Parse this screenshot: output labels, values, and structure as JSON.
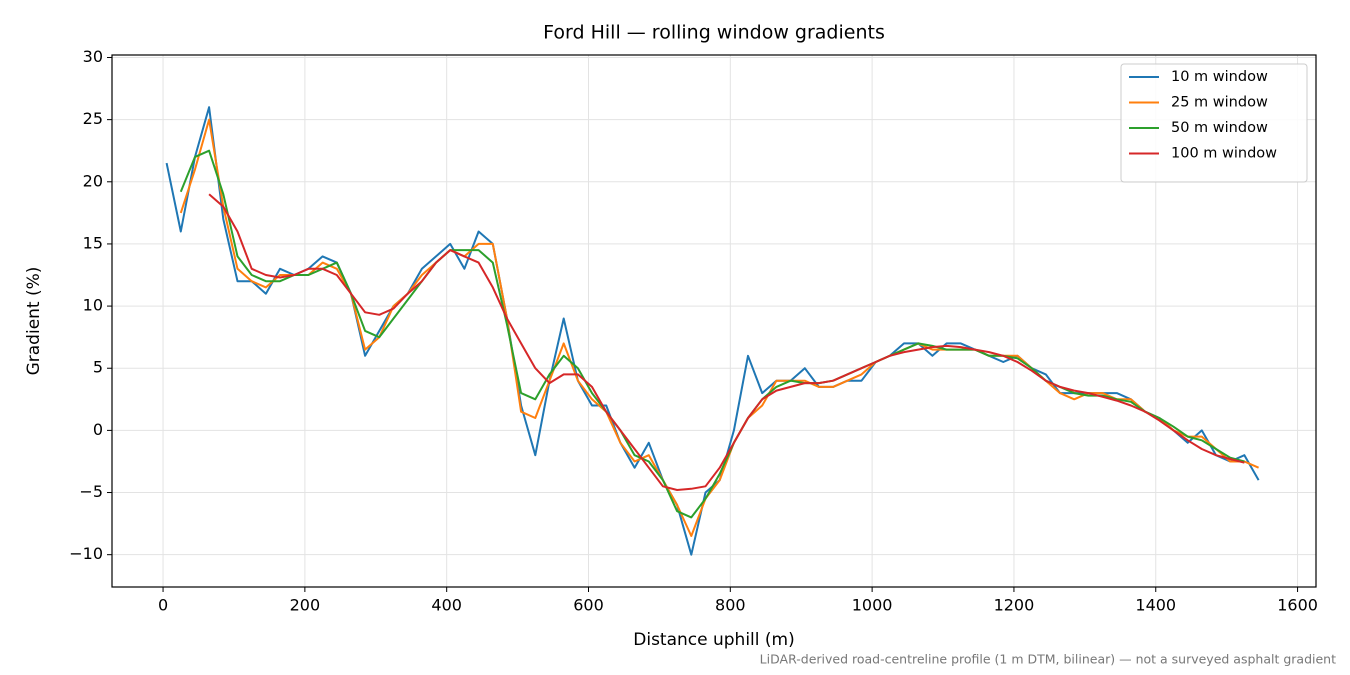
{
  "chart_data": {
    "type": "line",
    "title": "Ford Hill — rolling window gradients",
    "x_label": "Distance uphill (m)",
    "y_label": "Gradient (%)",
    "footnote": "LiDAR-derived road-centreline profile (1 m DTM, bilinear) — not a surveyed asphalt gradient",
    "grid": true,
    "legend": "upper right",
    "xlim": [
      -72,
      1626
    ],
    "ylim": [
      -12.6,
      30.2
    ],
    "xticks": [
      0,
      200,
      400,
      600,
      800,
      1000,
      1200,
      1400,
      1600
    ],
    "yticks": [
      {
        "value": -10,
        "label": "−10"
      },
      {
        "value": -5,
        "label": "−5"
      },
      0,
      5,
      10,
      15,
      20,
      25,
      30
    ],
    "x": [
      5,
      25,
      45,
      65,
      85,
      105,
      125,
      145,
      165,
      185,
      205,
      225,
      245,
      265,
      285,
      305,
      325,
      345,
      365,
      385,
      405,
      425,
      445,
      465,
      485,
      505,
      525,
      545,
      565,
      585,
      605,
      625,
      645,
      665,
      685,
      705,
      725,
      745,
      765,
      785,
      805,
      825,
      845,
      865,
      885,
      905,
      925,
      945,
      965,
      985,
      1005,
      1025,
      1045,
      1065,
      1085,
      1105,
      1125,
      1145,
      1165,
      1185,
      1205,
      1225,
      1245,
      1265,
      1285,
      1305,
      1325,
      1345,
      1365,
      1385,
      1405,
      1425,
      1445,
      1465,
      1485,
      1505,
      1525,
      1545
    ],
    "series": [
      {
        "name": "10 m window",
        "color": "#1f77b4",
        "values": [
          21.5,
          16,
          22,
          26,
          17,
          12,
          12,
          11,
          13,
          12.5,
          13,
          14,
          13.5,
          11,
          6,
          8,
          10,
          11,
          13,
          14,
          15,
          13,
          16,
          15,
          9,
          2,
          -2,
          4,
          9,
          4,
          2,
          2,
          -1,
          -3,
          -1,
          -4,
          -6,
          -10,
          -5,
          -4,
          0,
          6,
          3,
          4,
          4,
          5,
          3.5,
          3.5,
          4,
          4,
          5.5,
          6,
          7,
          7,
          6,
          7,
          7,
          6.5,
          6,
          5.5,
          6,
          5,
          4.5,
          3,
          3,
          3,
          3,
          3,
          2.5,
          1.5,
          1,
          0,
          -1,
          0,
          -2,
          -2.5,
          -2,
          -4
        ]
      },
      {
        "name": "25 m window",
        "color": "#ff7f0e",
        "values": [
          null,
          17.5,
          21,
          25,
          18,
          13,
          12,
          11.5,
          12.5,
          12.5,
          12.5,
          13.5,
          13,
          11,
          6.5,
          7.5,
          10,
          11,
          12.5,
          13.5,
          14.5,
          14,
          15,
          15,
          9,
          1.5,
          1,
          4,
          7,
          4,
          2.5,
          1.5,
          -1,
          -2.5,
          -2,
          -4,
          -6,
          -8.5,
          -5.5,
          -4,
          -1,
          1,
          2,
          4,
          4,
          4,
          3.5,
          3.5,
          4,
          4.5,
          5.5,
          6,
          6.5,
          7,
          6.5,
          6.5,
          6.5,
          6.5,
          6,
          6,
          6,
          5,
          4,
          3,
          2.5,
          3,
          3,
          2.5,
          2.5,
          1.5,
          1,
          0,
          -0.5,
          -0.5,
          -1.5,
          -2.5,
          -2.5,
          -3
        ]
      },
      {
        "name": "50 m window",
        "color": "#2ca02c",
        "values": [
          null,
          19.2,
          22,
          22.5,
          19,
          14,
          12.5,
          12,
          12,
          12.5,
          12.5,
          13,
          13.5,
          11,
          8,
          7.5,
          9,
          10.5,
          12,
          13.5,
          14.5,
          14.5,
          14.5,
          13.5,
          8.5,
          3,
          2.5,
          4.5,
          6,
          5,
          3,
          1.5,
          0,
          -2,
          -2.5,
          -4,
          -6.5,
          -7,
          -5.5,
          -3.5,
          -1,
          1,
          2.5,
          3.5,
          4,
          3.8,
          3.8,
          4,
          4.5,
          5,
          5.5,
          6,
          6.5,
          7,
          6.8,
          6.5,
          6.5,
          6.5,
          6,
          6,
          5.8,
          5,
          4,
          3.5,
          3,
          2.8,
          2.8,
          2.5,
          2.3,
          1.5,
          1,
          0.3,
          -0.5,
          -0.8,
          -1.5,
          -2.2,
          -2.5,
          null
        ]
      },
      {
        "name": "100 m window",
        "color": "#d62728",
        "values": [
          null,
          null,
          null,
          19,
          18,
          16,
          13,
          12.5,
          12.3,
          12.5,
          13,
          13,
          12.5,
          11,
          9.5,
          9.3,
          9.8,
          11,
          12,
          13.5,
          14.5,
          14,
          13.5,
          11.5,
          9,
          7,
          5,
          3.8,
          4.5,
          4.5,
          3.5,
          1.5,
          0,
          -1.5,
          -3,
          -4.5,
          -4.8,
          -4.7,
          -4.5,
          -3,
          -1,
          1,
          2.5,
          3.2,
          3.5,
          3.8,
          3.8,
          4,
          4.5,
          5,
          5.5,
          6,
          6.3,
          6.5,
          6.7,
          6.8,
          6.7,
          6.5,
          6.3,
          6,
          5.5,
          4.8,
          4,
          3.5,
          3.2,
          3,
          2.7,
          2.4,
          2,
          1.5,
          0.8,
          0,
          -0.8,
          -1.5,
          -2,
          -2.3,
          -2.6,
          null
        ]
      }
    ]
  }
}
